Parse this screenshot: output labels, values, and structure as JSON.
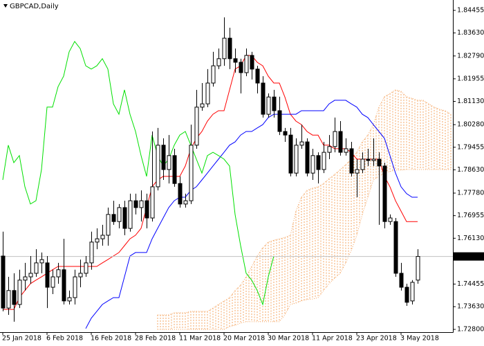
{
  "chart_data": {
    "type": "candlestick",
    "title": "GBPCAD,Daily",
    "grid": false,
    "ylim": [
      1.728,
      1.84455
    ],
    "yticks": [
      1.84455,
      {
        "value": 1.8363,
        "label": "1.83630"
      },
      {
        "value": 1.8279,
        "label": "1.82790"
      },
      1.81955,
      {
        "value": 1.8113,
        "label": "1.81130"
      },
      {
        "value": 1.8028,
        "label": "1.80280"
      },
      1.79455,
      {
        "value": 1.7863,
        "label": "1.78630"
      },
      {
        "value": 1.7778,
        "label": "1.77780"
      },
      1.76955,
      {
        "value": 1.7613,
        "label": "1.76130"
      },
      1.74455,
      {
        "value": 1.7363,
        "label": "1.73630"
      },
      {
        "value": 1.728,
        "label": "1.72800"
      }
    ],
    "last_price": 1.75465,
    "candle_color": "#000000",
    "categories": [
      "25 Jan 2018",
      null,
      null,
      null,
      null,
      null,
      null,
      null,
      "6 Feb 2018",
      null,
      null,
      null,
      null,
      null,
      null,
      null,
      "16 Feb 2018",
      null,
      null,
      null,
      null,
      null,
      null,
      null,
      "28 Feb 2018",
      null,
      null,
      null,
      null,
      null,
      null,
      null,
      "11 Mar 2018",
      null,
      null,
      null,
      null,
      null,
      null,
      null,
      "20 Mar 2018",
      null,
      null,
      null,
      null,
      null,
      null,
      null,
      "30 Mar 2018",
      null,
      null,
      null,
      null,
      null,
      null,
      null,
      "11 Apr 2018",
      null,
      null,
      null,
      null,
      null,
      null,
      null,
      "23 Apr 2018",
      null,
      null,
      null,
      null,
      null,
      null,
      null,
      "3 May 2018",
      null,
      null,
      null,
      null,
      null,
      null,
      null,
      null,
      null
    ],
    "open": [
      1.7548,
      1.7358,
      1.7422,
      1.7371,
      1.746,
      1.7472,
      1.7485,
      1.7523,
      1.7523,
      1.7434,
      1.7472,
      1.7498,
      1.7384,
      1.7396,
      1.7472,
      1.7485,
      1.7523,
      1.7599,
      1.7611,
      1.7624,
      1.77,
      1.7674,
      1.7725,
      1.7649,
      1.775,
      1.7725,
      1.775,
      1.7687,
      1.7801,
      1.7953,
      1.7864,
      1.7915,
      1.7813,
      1.7738,
      1.775,
      1.7953,
      1.8092,
      1.8104,
      1.818,
      1.8243,
      1.8269,
      1.8344,
      1.8269,
      1.8256,
      1.8218,
      1.8281,
      1.8231,
      1.818,
      1.8066,
      1.8129,
      1.8079,
      1.8003,
      1.799,
      1.7851,
      1.7953,
      1.7965,
      1.7851,
      1.7915,
      1.7864,
      1.7927,
      1.7948,
      1.8003,
      1.7927,
      1.794,
      1.7851,
      1.7864,
      1.7902,
      1.7897,
      1.7902,
      1.7877,
      1.7674,
      1.7674,
      1.7485,
      1.7434,
      1.7384,
      1.746,
      null,
      null,
      null,
      null,
      null,
      null
    ],
    "high": [
      1.7637,
      1.7472,
      1.7485,
      1.7498,
      1.7523,
      1.7548,
      1.7573,
      1.7561,
      1.7548,
      1.7498,
      1.7523,
      1.7611,
      1.7422,
      1.7498,
      1.7535,
      1.7548,
      1.7637,
      1.7649,
      1.7662,
      1.7725,
      1.775,
      1.7738,
      1.775,
      1.7776,
      1.7776,
      1.7788,
      1.7776,
      1.8003,
      1.8016,
      1.7978,
      1.799,
      1.794,
      1.7839,
      1.7776,
      1.8028,
      1.8155,
      1.818,
      1.8231,
      1.8294,
      1.8306,
      1.842,
      1.8382,
      1.8306,
      1.8269,
      1.8306,
      1.8294,
      1.8243,
      1.8205,
      1.8142,
      1.8155,
      1.813,
      1.8016,
      1.8016,
      1.7978,
      1.8028,
      1.7978,
      1.794,
      1.7927,
      1.7965,
      1.799,
      1.8054,
      1.8041,
      1.7978,
      1.7965,
      1.7902,
      1.7927,
      1.794,
      1.7978,
      1.7927,
      1.7889,
      1.77,
      1.7687,
      1.7523,
      1.7447,
      1.746,
      1.7573,
      null,
      null,
      null,
      null,
      null,
      null
    ],
    "low": [
      1.7346,
      1.7333,
      1.7308,
      1.7358,
      1.7422,
      1.7447,
      1.7472,
      1.7485,
      1.7358,
      1.7409,
      1.7447,
      1.7371,
      1.7371,
      1.7371,
      1.7434,
      1.7472,
      1.7498,
      1.7573,
      1.7586,
      1.7586,
      1.7662,
      1.7649,
      1.7624,
      1.7637,
      1.77,
      1.7674,
      1.7649,
      1.7674,
      1.7788,
      1.7826,
      1.7813,
      1.7801,
      1.7725,
      1.7725,
      1.7738,
      1.794,
      1.8079,
      1.8092,
      1.8167,
      1.8231,
      1.8243,
      1.8231,
      1.8218,
      1.8142,
      1.8205,
      1.8193,
      1.8142,
      1.8054,
      1.8054,
      1.8054,
      1.799,
      1.7965,
      1.7839,
      1.7839,
      1.794,
      1.7839,
      1.7826,
      1.7813,
      1.7851,
      1.7902,
      1.7927,
      1.7915,
      1.7915,
      1.7839,
      1.7763,
      1.7851,
      1.7877,
      1.7877,
      1.7662,
      1.7649,
      1.7662,
      1.7472,
      1.7422,
      1.7366,
      1.7371,
      1.7447,
      null,
      null,
      null,
      null,
      null,
      null
    ],
    "close": [
      1.7358,
      1.7422,
      1.7371,
      1.746,
      1.7472,
      1.7485,
      1.7523,
      1.7535,
      1.7434,
      1.7472,
      1.7498,
      1.7384,
      1.7396,
      1.7472,
      1.7485,
      1.7523,
      1.7599,
      1.7611,
      1.7624,
      1.77,
      1.7674,
      1.7725,
      1.7649,
      1.775,
      1.7725,
      1.775,
      1.7687,
      1.7801,
      1.7953,
      1.7864,
      1.7915,
      1.7813,
      1.7738,
      1.775,
      1.7953,
      1.8092,
      1.8104,
      1.818,
      1.8243,
      1.8269,
      1.8344,
      1.8269,
      1.8256,
      1.8218,
      1.8281,
      1.8231,
      1.818,
      1.8066,
      1.8129,
      1.8079,
      1.8003,
      1.799,
      1.7851,
      1.7953,
      1.7965,
      1.7851,
      1.7915,
      1.7864,
      1.7927,
      1.7948,
      1.8003,
      1.7927,
      1.794,
      1.7851,
      1.7864,
      1.7902,
      1.7897,
      1.7902,
      1.7877,
      1.7674,
      1.7687,
      1.7485,
      1.7434,
      1.7379,
      1.7452,
      1.75465,
      null,
      null,
      null,
      null,
      null,
      null
    ],
    "lines": [
      {
        "color": "#ff0000",
        "values": [
          1.7353,
          1.7353,
          1.7353,
          1.7396,
          1.7422,
          1.7447,
          1.746,
          1.7472,
          1.7485,
          1.7498,
          1.751,
          1.751,
          1.751,
          1.751,
          1.751,
          1.751,
          1.751,
          1.751,
          1.7523,
          1.7535,
          1.7548,
          1.7561,
          1.7586,
          1.7611,
          1.7624,
          1.7649,
          1.7725,
          1.7801,
          1.7826,
          1.7839,
          1.7839,
          1.7839,
          1.7839,
          1.7877,
          1.794,
          1.7978,
          1.8003,
          1.8041,
          1.8066,
          1.8079,
          1.8079,
          1.8155,
          1.8231,
          1.8243,
          1.8281,
          1.8281,
          1.8256,
          1.8243,
          1.8205,
          1.818,
          1.818,
          1.8129,
          1.8066,
          1.8041,
          1.8028,
          1.8003,
          1.799,
          1.799,
          1.7953,
          1.7953,
          1.794,
          1.794,
          1.794,
          1.7927,
          1.7902,
          1.7902,
          1.7902,
          1.7902,
          1.7902,
          1.7839,
          1.7801,
          1.775,
          1.7712,
          1.7674,
          1.7674,
          1.7674,
          null,
          null,
          null,
          null,
          null,
          null
        ]
      },
      {
        "color": "#0000ff",
        "values": [
          null,
          null,
          null,
          null,
          null,
          null,
          null,
          null,
          null,
          null,
          null,
          null,
          null,
          null,
          null,
          1.7283,
          1.7321,
          1.7346,
          1.7371,
          1.7384,
          1.7396,
          1.7396,
          1.7472,
          1.7548,
          1.7561,
          1.7561,
          1.7561,
          1.7611,
          1.7649,
          1.7687,
          1.7725,
          1.775,
          1.7763,
          1.7763,
          1.7788,
          1.7801,
          1.7826,
          1.7851,
          1.7877,
          1.7902,
          1.7927,
          1.7953,
          1.7965,
          1.799,
          1.8003,
          1.8003,
          1.8016,
          1.8028,
          1.8054,
          1.8066,
          1.8066,
          1.8066,
          1.8066,
          1.8066,
          1.8079,
          1.8079,
          1.8079,
          1.8079,
          1.8079,
          1.8104,
          1.8117,
          1.8117,
          1.8117,
          1.8104,
          1.8092,
          1.8066,
          1.8054,
          1.8028,
          1.8003,
          1.7978,
          1.7915,
          1.7851,
          1.7801,
          1.7776,
          1.7763,
          1.7763,
          null,
          null,
          null,
          null,
          null,
          null
        ]
      },
      {
        "color": "#00e000",
        "values": [
          1.7826,
          1.7953,
          1.7889,
          1.7915,
          1.7801,
          1.7738,
          1.775,
          1.7864,
          1.8092,
          1.8092,
          1.8167,
          1.8205,
          1.8294,
          1.8332,
          1.8306,
          1.8243,
          1.8231,
          1.8243,
          1.8269,
          1.8231,
          1.8104,
          1.8066,
          1.8155,
          1.8066,
          1.8003,
          1.7915,
          1.7839,
          1.799,
          1.7915,
          1.7877,
          1.7902,
          1.7953,
          1.799,
          1.8003,
          1.7953,
          1.7902,
          1.7851,
          1.7915,
          1.7927,
          1.7915,
          1.7902,
          1.7877,
          1.77,
          1.7586,
          1.7485,
          1.746,
          1.7422,
          1.7371,
          1.7472,
          1.7548,
          null,
          null,
          null,
          null,
          null,
          null,
          null,
          null,
          null,
          null,
          null,
          null,
          null,
          null,
          null,
          null,
          null,
          null,
          null,
          null,
          null,
          null,
          null,
          null,
          null,
          null,
          null,
          null,
          null,
          null,
          null,
          null
        ]
      }
    ],
    "cloud": {
      "color": "#f4a460",
      "span_a": [
        null,
        null,
        null,
        null,
        null,
        null,
        null,
        null,
        null,
        null,
        null,
        null,
        null,
        null,
        null,
        null,
        null,
        null,
        null,
        null,
        null,
        null,
        null,
        null,
        null,
        null,
        null,
        null,
        1.7333,
        1.7333,
        1.7333,
        1.7341,
        1.7341,
        1.7341,
        1.7346,
        1.7346,
        1.7346,
        1.7346,
        1.7358,
        1.7371,
        1.7384,
        1.7396,
        1.7422,
        1.7442,
        1.7472,
        1.751,
        1.7548,
        1.7578,
        1.7599,
        1.7606,
        1.7611,
        1.7616,
        1.7624,
        1.7712,
        1.7763,
        1.7788,
        1.7796,
        1.7801,
        1.7813,
        1.7831,
        1.7846,
        1.7864,
        1.7882,
        1.7902,
        1.7927,
        1.7965,
        1.799,
        1.8028,
        1.8092,
        1.813,
        1.8142,
        1.8155,
        1.815,
        1.813,
        1.8124,
        1.8117,
        1.8117,
        1.8104,
        1.8092,
        1.8084,
        1.8079,
        1.8066
      ],
      "span_b": [
        null,
        null,
        null,
        null,
        null,
        null,
        null,
        null,
        null,
        null,
        null,
        null,
        null,
        null,
        null,
        null,
        null,
        null,
        null,
        null,
        null,
        null,
        null,
        null,
        null,
        null,
        null,
        null,
        1.728,
        1.728,
        1.728,
        1.728,
        1.728,
        1.728,
        1.728,
        1.728,
        1.728,
        1.728,
        1.728,
        1.728,
        1.728,
        1.729,
        1.7295,
        1.7303,
        1.7308,
        1.7308,
        1.7308,
        1.7308,
        1.7308,
        1.7308,
        1.7308,
        1.7333,
        1.7371,
        1.7376,
        1.7384,
        1.7389,
        1.7391,
        1.7396,
        1.7422,
        1.7447,
        1.7467,
        1.7485,
        1.7523,
        1.7568,
        1.7624,
        1.77,
        1.7763,
        1.7826,
        1.7839,
        1.7851,
        1.7857,
        1.7862,
        1.7862,
        1.7864,
        1.7864,
        1.7864,
        1.7864,
        1.7864,
        1.7864,
        1.7864,
        1.7864,
        1.7864
      ]
    }
  }
}
